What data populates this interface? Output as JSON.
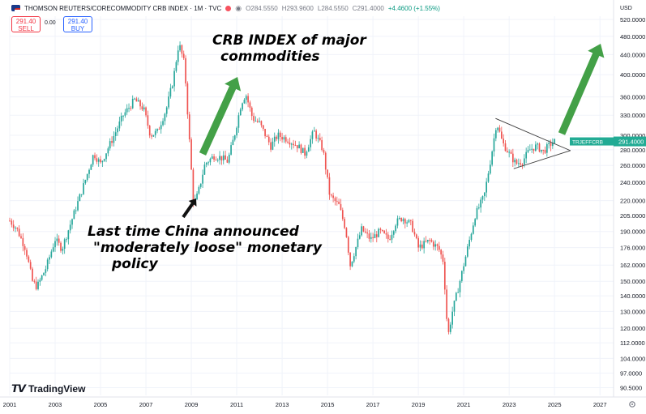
{
  "header": {
    "title": "THOMSON REUTERS/CORECOMMODITY CRB INDEX · 1M · TVC",
    "open": "O284.5550",
    "high": "H293.9600",
    "low": "L284.5550",
    "close": "C291.4000",
    "change": "+4.4600 (+1.55%)"
  },
  "trade": {
    "sell_price": "291.40",
    "sell_label": "SELL",
    "buy_price": "291.40",
    "buy_label": "BUY",
    "spread": "0.00"
  },
  "price_axis": {
    "currency": "USD",
    "last_tag_symbol": "TRJEFFCRB",
    "last_tag_value": "291.4000"
  },
  "brand": {
    "name": "TradingView"
  },
  "annotations": {
    "title_line1": "CRB INDEX of major",
    "title_line2": "commodities",
    "note_line1": "Last time China announced",
    "note_line2": "\"moderately loose\" monetary",
    "note_line3": "policy"
  },
  "colors": {
    "up": "#26a69a",
    "down": "#ef5350",
    "arrow_green": "#43a047",
    "tag_bg": "#22ab94"
  },
  "icons": {
    "flag": "us-flag-icon",
    "status": "dot-icon",
    "visibility": "eye-icon",
    "settings": "gear-icon"
  },
  "chart_data": {
    "type": "candlestick",
    "scale": "log",
    "ylim": [
      90,
      520
    ],
    "xlim": [
      2001.0,
      2027.6
    ],
    "y_ticks": [
      "520.0000",
      "480.0000",
      "440.0000",
      "400.0000",
      "360.0000",
      "330.0000",
      "300.0000",
      "280.0000",
      "260.0000",
      "240.0000",
      "220.0000",
      "205.0000",
      "190.0000",
      "176.0000",
      "162.0000",
      "150.0000",
      "140.0000",
      "130.0000",
      "120.0000",
      "112.0000",
      "104.0000",
      "97.0000",
      "90.5000"
    ],
    "x_ticks": [
      "2001",
      "2003",
      "2005",
      "2007",
      "2009",
      "2011",
      "2013",
      "2015",
      "2017",
      "2019",
      "2021",
      "2023",
      "2025",
      "2027"
    ],
    "last_price": 291.4,
    "path": [
      [
        2001.0,
        200
      ],
      [
        2001.3,
        193
      ],
      [
        2001.7,
        175
      ],
      [
        2002.0,
        150
      ],
      [
        2002.2,
        146
      ],
      [
        2002.6,
        160
      ],
      [
        2003.0,
        183
      ],
      [
        2003.3,
        175
      ],
      [
        2003.8,
        205
      ],
      [
        2004.3,
        240
      ],
      [
        2004.7,
        275
      ],
      [
        2005.0,
        262
      ],
      [
        2005.6,
        300
      ],
      [
        2006.0,
        330
      ],
      [
        2006.5,
        355
      ],
      [
        2006.9,
        340
      ],
      [
        2007.2,
        300
      ],
      [
        2007.5,
        305
      ],
      [
        2007.9,
        340
      ],
      [
        2008.2,
        390
      ],
      [
        2008.45,
        465
      ],
      [
        2008.7,
        420
      ],
      [
        2008.9,
        300
      ],
      [
        2009.1,
        215
      ],
      [
        2009.3,
        228
      ],
      [
        2009.6,
        262
      ],
      [
        2010.0,
        272
      ],
      [
        2010.3,
        270
      ],
      [
        2010.6,
        265
      ],
      [
        2010.9,
        300
      ],
      [
        2011.2,
        350
      ],
      [
        2011.4,
        365
      ],
      [
        2011.7,
        325
      ],
      [
        2012.0,
        318
      ],
      [
        2012.5,
        285
      ],
      [
        2012.8,
        300
      ],
      [
        2013.2,
        295
      ],
      [
        2013.7,
        285
      ],
      [
        2014.0,
        275
      ],
      [
        2014.4,
        306
      ],
      [
        2014.8,
        280
      ],
      [
        2015.1,
        225
      ],
      [
        2015.5,
        215
      ],
      [
        2015.8,
        192
      ],
      [
        2016.0,
        162
      ],
      [
        2016.5,
        192
      ],
      [
        2016.9,
        183
      ],
      [
        2017.3,
        190
      ],
      [
        2017.7,
        183
      ],
      [
        2018.0,
        198
      ],
      [
        2018.3,
        203
      ],
      [
        2018.7,
        196
      ],
      [
        2019.0,
        176
      ],
      [
        2019.5,
        182
      ],
      [
        2019.9,
        175
      ],
      [
        2020.1,
        165
      ],
      [
        2020.3,
        115
      ],
      [
        2020.5,
        130
      ],
      [
        2020.8,
        148
      ],
      [
        2021.1,
        170
      ],
      [
        2021.5,
        205
      ],
      [
        2021.9,
        225
      ],
      [
        2022.2,
        270
      ],
      [
        2022.45,
        320
      ],
      [
        2022.7,
        290
      ],
      [
        2023.0,
        275
      ],
      [
        2023.3,
        262
      ],
      [
        2023.6,
        266
      ],
      [
        2023.9,
        280
      ],
      [
        2024.2,
        285
      ],
      [
        2024.5,
        278
      ],
      [
        2024.8,
        287
      ],
      [
        2025.0,
        291.4
      ]
    ],
    "trendlines": [
      {
        "from": [
          2022.4,
          325
        ],
        "to": [
          2025.7,
          279
        ]
      },
      {
        "from": [
          2023.2,
          256
        ],
        "to": [
          2025.7,
          279
        ]
      }
    ]
  }
}
